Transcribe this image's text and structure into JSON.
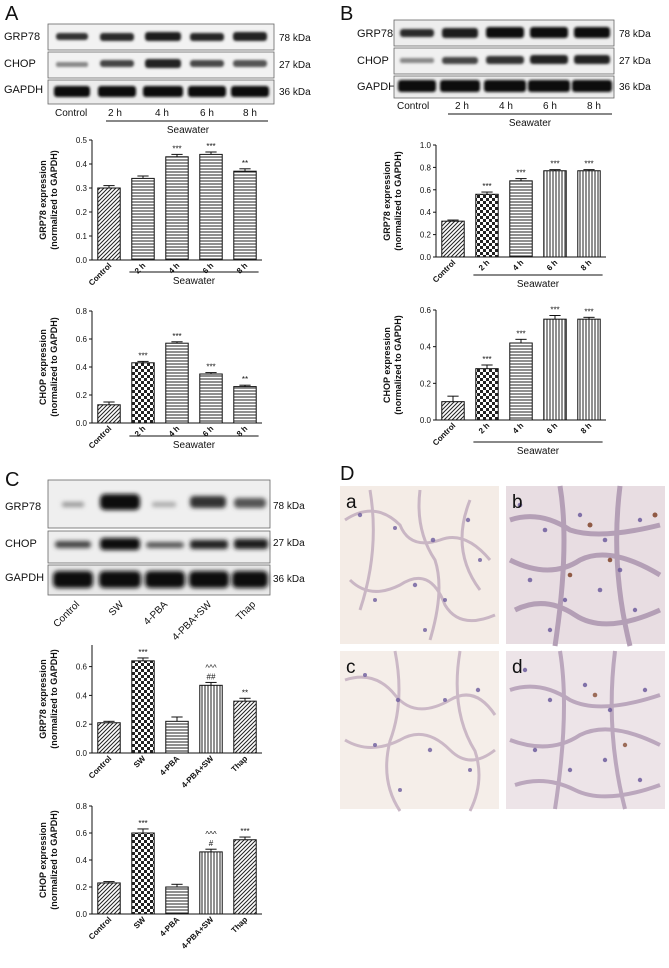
{
  "panels": {
    "A": "A",
    "B": "B",
    "C": "C",
    "D": "D"
  },
  "blot_labels": {
    "grp78": "GRP78",
    "chop": "CHOP",
    "gapdh": "GAPDH",
    "kda78": "78 kDa",
    "kda27": "27 kDa",
    "kda36": "36 kDa"
  },
  "time_lanes": [
    "Control",
    "2 h",
    "4 h",
    "6 h",
    "8 h"
  ],
  "treat_lanes": [
    "Control",
    "SW",
    "4-PBA",
    "4-PBA+SW",
    "Thap"
  ],
  "seawater": "Seawater",
  "micrographs": [
    "a",
    "b",
    "c",
    "d"
  ],
  "chart_data": [
    {
      "id": "A-GRP78",
      "type": "bar",
      "ylabel": "GRP78 expression\n(normalized to GAPDH)",
      "categories": [
        "Control",
        "2 h",
        "4 h",
        "6 h",
        "8 h"
      ],
      "values": [
        0.3,
        0.34,
        0.43,
        0.44,
        0.37
      ],
      "errors": [
        0.01,
        0.01,
        0.01,
        0.01,
        0.01
      ],
      "sig": [
        "",
        "",
        "***",
        "***",
        "**"
      ],
      "ylim": [
        0,
        0.5
      ],
      "yticks": [
        "0.0",
        "0.1",
        "0.2",
        "0.3",
        "0.4",
        "0.5"
      ],
      "group_label": "Seawater",
      "patterns": [
        "diag",
        "hline",
        "hline",
        "hline",
        "hline"
      ]
    },
    {
      "id": "A-CHOP",
      "type": "bar",
      "ylabel": "CHOP expression\n(normalized to GAPDH)",
      "categories": [
        "Control",
        "2 h",
        "4 h",
        "6 h",
        "8 h"
      ],
      "values": [
        0.13,
        0.43,
        0.57,
        0.35,
        0.26
      ],
      "errors": [
        0.02,
        0.01,
        0.01,
        0.01,
        0.01
      ],
      "sig": [
        "",
        "***",
        "***",
        "***",
        "**"
      ],
      "ylim": [
        0,
        0.8
      ],
      "yticks": [
        "0.0",
        "0.2",
        "0.4",
        "0.6",
        "0.8"
      ],
      "group_label": "Seawater",
      "patterns": [
        "diag",
        "check",
        "hline",
        "hline",
        "hline"
      ]
    },
    {
      "id": "B-GRP78",
      "type": "bar",
      "ylabel": "GRP78 expression\n(normalized to GAPDH)",
      "categories": [
        "Control",
        "2 h",
        "4 h",
        "6 h",
        "8 h"
      ],
      "values": [
        0.32,
        0.56,
        0.68,
        0.77,
        0.77
      ],
      "errors": [
        0.01,
        0.02,
        0.02,
        0.01,
        0.01
      ],
      "sig": [
        "",
        "***",
        "***",
        "***",
        "***"
      ],
      "ylim": [
        0,
        1.0
      ],
      "yticks": [
        "0.0",
        "0.2",
        "0.4",
        "0.6",
        "0.8",
        "1.0"
      ],
      "group_label": "Seawater",
      "patterns": [
        "diag",
        "check",
        "hline",
        "vline",
        "vline"
      ]
    },
    {
      "id": "B-CHOP",
      "type": "bar",
      "ylabel": "CHOP expression\n(normalized to GAPDH)",
      "categories": [
        "Control",
        "2 h",
        "4 h",
        "6 h",
        "8 h"
      ],
      "values": [
        0.1,
        0.28,
        0.42,
        0.55,
        0.55
      ],
      "errors": [
        0.03,
        0.02,
        0.02,
        0.02,
        0.01
      ],
      "sig": [
        "",
        "***",
        "***",
        "***",
        "***"
      ],
      "ylim": [
        0,
        0.6
      ],
      "yticks": [
        "0.0",
        "0.2",
        "0.4",
        "0.6"
      ],
      "group_label": "Seawater",
      "patterns": [
        "diag",
        "check",
        "hline",
        "vline",
        "vline"
      ]
    },
    {
      "id": "C-GRP78",
      "type": "bar",
      "ylabel": "GRP78 expression\n(normalized to GAPDH)",
      "categories": [
        "Control",
        "SW",
        "4-PBA",
        "4-PBA+SW",
        "Thap"
      ],
      "values": [
        0.21,
        0.64,
        0.22,
        0.47,
        0.36
      ],
      "errors": [
        0.01,
        0.02,
        0.03,
        0.02,
        0.02
      ],
      "sig": [
        "",
        "***",
        "",
        "^^^\n##",
        "**"
      ],
      "ylim": [
        0,
        0.75
      ],
      "yticks": [
        "0.0",
        "0.2",
        "0.4",
        "0.6"
      ],
      "group_label": "",
      "patterns": [
        "diag",
        "check",
        "hline",
        "vline",
        "diag"
      ]
    },
    {
      "id": "C-CHOP",
      "type": "bar",
      "ylabel": "CHOP expression\n(normalized to GAPDH)",
      "categories": [
        "Control",
        "SW",
        "4-PBA",
        "4-PBA+SW",
        "Thap"
      ],
      "values": [
        0.23,
        0.6,
        0.2,
        0.46,
        0.55
      ],
      "errors": [
        0.01,
        0.03,
        0.02,
        0.02,
        0.02
      ],
      "sig": [
        "",
        "***",
        "",
        "^^^\n#",
        "***"
      ],
      "ylim": [
        0,
        0.8
      ],
      "yticks": [
        "0.0",
        "0.2",
        "0.4",
        "0.6",
        "0.8"
      ],
      "group_label": "",
      "patterns": [
        "diag",
        "check",
        "hline",
        "vline",
        "diag"
      ]
    }
  ]
}
